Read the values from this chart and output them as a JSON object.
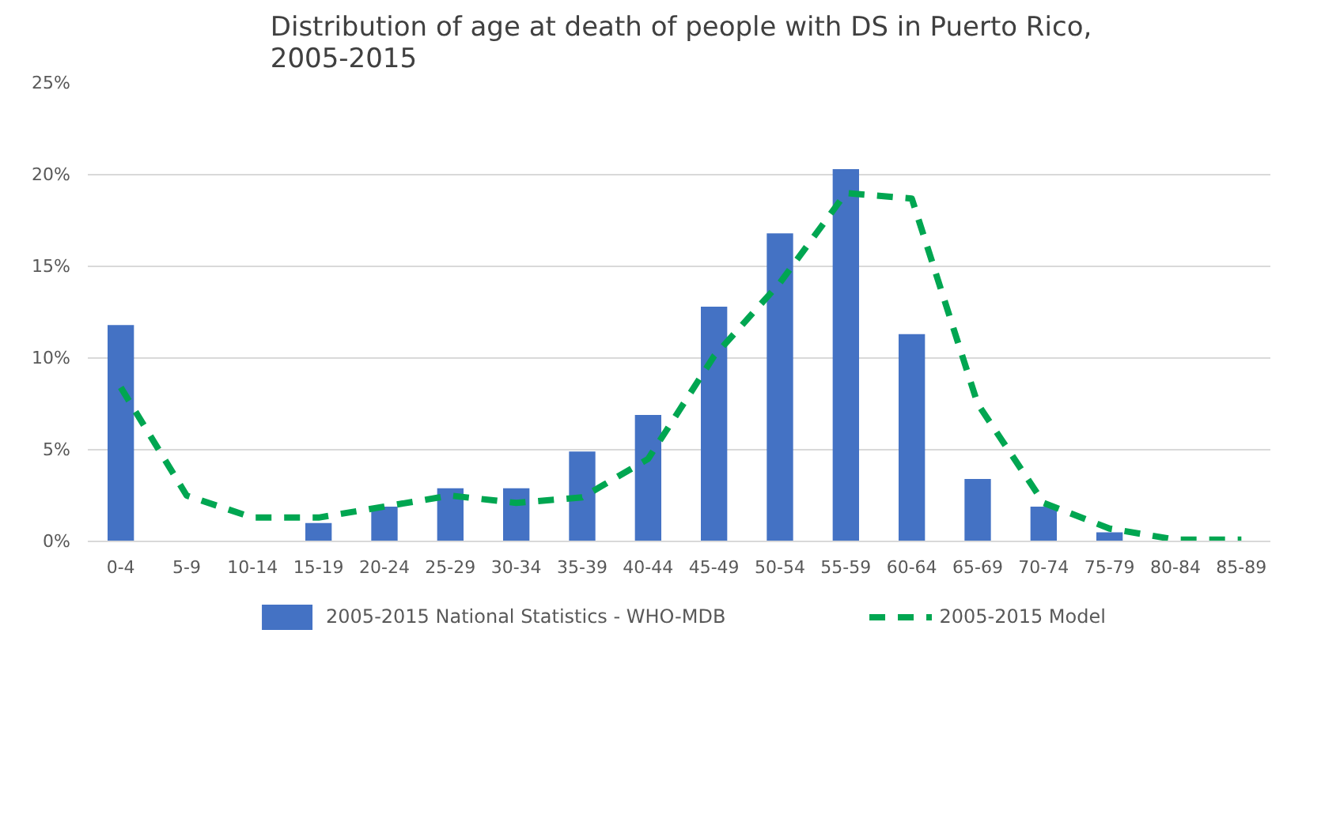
{
  "chart_data": {
    "type": "bar",
    "title": "Distribution of age at death of people with DS in Puerto Rico,\n2005-2015",
    "categories": [
      "0-4",
      "5-9",
      "10-14",
      "15-19",
      "20-24",
      "25-29",
      "30-34",
      "35-39",
      "40-44",
      "45-49",
      "50-54",
      "55-59",
      "60-64",
      "65-69",
      "70-74",
      "75-79",
      "80-84",
      "85-89"
    ],
    "series": [
      {
        "name": "2005-2015 National Statistics - WHO-MDB",
        "color": "#4472c4",
        "values": [
          11.8,
          0,
          0,
          1.0,
          1.9,
          2.9,
          2.9,
          4.9,
          6.9,
          12.8,
          16.8,
          20.3,
          11.3,
          3.4,
          1.9,
          0.5,
          0,
          0
        ]
      },
      {
        "name": "2005-2015 Model",
        "type": "line",
        "line_style": "dashed",
        "color": "#00a651",
        "values": [
          8.4,
          2.5,
          1.3,
          1.3,
          1.9,
          2.5,
          2.1,
          2.4,
          4.5,
          10.1,
          14.1,
          19.0,
          18.7,
          7.5,
          2.1,
          0.7,
          0.1,
          0.1
        ]
      }
    ],
    "ylim": [
      0,
      25
    ],
    "yticks": [
      {
        "value": 0,
        "label": "0%"
      },
      {
        "value": 5,
        "label": "5%"
      },
      {
        "value": 10,
        "label": "10%"
      },
      {
        "value": 15,
        "label": "15%"
      },
      {
        "value": 20,
        "label": "20%"
      },
      {
        "value": 25,
        "label": "25%"
      }
    ],
    "grid": "y",
    "legend": "bottom"
  }
}
